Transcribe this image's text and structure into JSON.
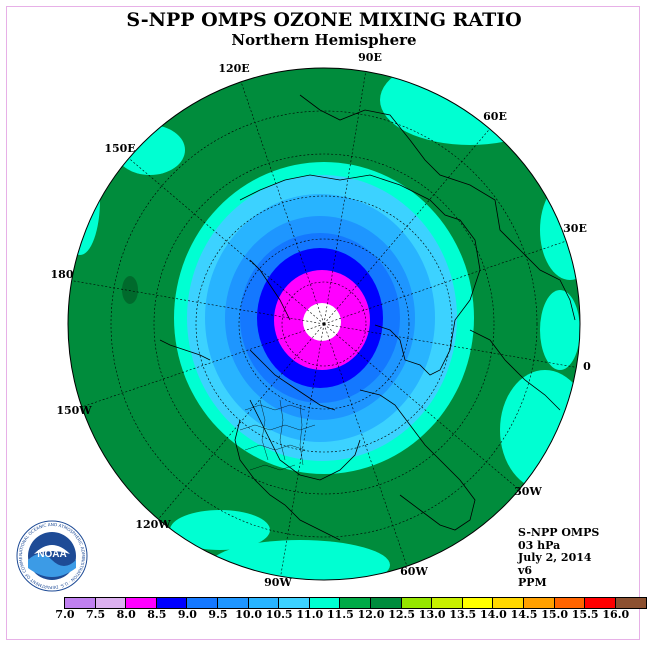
{
  "title": "S-NPP OMPS OZONE MIXING RATIO",
  "subtitle": "Northern Hemisphere",
  "longitude_labels": [
    "90E",
    "60E",
    "30E",
    "0",
    "30W",
    "60W",
    "90W",
    "120W",
    "150W",
    "180",
    "150E",
    "120E"
  ],
  "info": {
    "instrument": "S-NPP OMPS",
    "pressure": "03 hPa",
    "date": "July 2, 2014",
    "version": "v6",
    "units": "PPM"
  },
  "colorbar": {
    "ticks": [
      "7.0",
      "7.5",
      "8.0",
      "8.5",
      "9.0",
      "9.5",
      "10.0",
      "10.5",
      "11.0",
      "11.5",
      "12.0",
      "12.5",
      "13.0",
      "13.5",
      "14.0",
      "14.5",
      "15.0",
      "15.5",
      "16.0"
    ],
    "colors": [
      "#c080f0",
      "#dcb0f0",
      "#ff00ff",
      "#0000ff",
      "#1478ff",
      "#1e96ff",
      "#28b4ff",
      "#3cd2ff",
      "#00ffd2",
      "#00aa46",
      "#008c3c",
      "#96e600",
      "#c8f000",
      "#ffff00",
      "#ffd700",
      "#ffa000",
      "#ff6400",
      "#ff0000",
      "#8c5030"
    ]
  },
  "logo_text": "NOAA",
  "logo_ring_text": "NATIONAL OCEANIC AND ATMOSPHERIC ADMINISTRATION · U.S. DEPARTMENT OF COMMERCE"
}
